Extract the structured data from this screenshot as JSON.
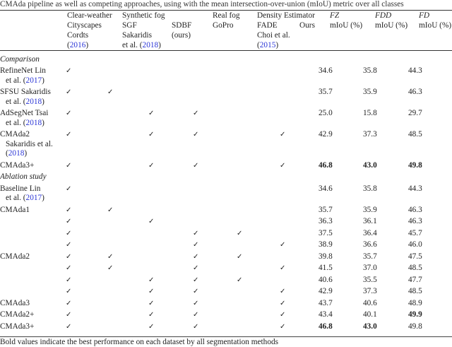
{
  "caption": "CMAda pipeline as well as competing approaches, using with the mean intersection-over-union (mIoU) metric over all classes",
  "link_color": "#2a35d6",
  "header": [
    {
      "lines": [
        [
          {
            "t": "Clear-weather"
          }
        ],
        [
          {
            "t": "Cityscapes"
          }
        ],
        [
          {
            "t": "Cordts"
          }
        ],
        [
          {
            "t": "("
          },
          {
            "t": "2016",
            "link": true
          },
          {
            "t": ")"
          }
        ]
      ]
    },
    {
      "lines": [
        [
          {
            "t": "Synthetic fog"
          }
        ],
        [
          {
            "t": "SGF"
          }
        ],
        [
          {
            "t": "Sakaridis"
          }
        ],
        [
          {
            "t": "et al. ("
          },
          {
            "t": "2018",
            "link": true
          },
          {
            "t": ")"
          }
        ]
      ]
    },
    {
      "lines": [
        [
          {
            "t": ""
          }
        ],
        [
          {
            "t": "SDBF"
          }
        ],
        [
          {
            "t": "(ours)"
          }
        ]
      ]
    },
    {
      "lines": [
        [
          {
            "t": "Real fog"
          }
        ],
        [
          {
            "t": "GoPro"
          }
        ]
      ]
    },
    {
      "lines": [
        [
          {
            "t": "Density Estimator"
          }
        ],
        [
          {
            "t": "FADE"
          }
        ],
        [
          {
            "t": "Choi et al."
          }
        ],
        [
          {
            "t": "("
          },
          {
            "t": "2015",
            "link": true
          },
          {
            "t": ")"
          }
        ]
      ]
    },
    {
      "lines": [
        [
          {
            "t": ""
          }
        ],
        [
          {
            "t": "Ours"
          }
        ]
      ]
    },
    {
      "lines": [
        [
          {
            "t": "FZ",
            "i": true
          }
        ],
        [
          {
            "t": "mIoU (%)"
          }
        ]
      ]
    },
    {
      "lines": [
        [
          {
            "t": "FDD",
            "i": true
          }
        ],
        [
          {
            "t": "mIoU (%)"
          }
        ]
      ]
    },
    {
      "lines": [
        [
          {
            "t": "FD",
            "i": true
          }
        ],
        [
          {
            "t": "mIoU (%)"
          }
        ]
      ]
    }
  ],
  "check_symbol": "✓",
  "rows": [
    {
      "section": "Comparison"
    },
    {
      "name": [
        [
          {
            "t": "RefineNet Lin"
          }
        ],
        [
          {
            "t": "et al. ("
          },
          {
            "t": "2017",
            "link": true
          },
          {
            "t": ")"
          }
        ]
      ],
      "checks": [
        1,
        0,
        0,
        0,
        0,
        0
      ],
      "values": [
        "34.6",
        "35.8",
        "44.3"
      ],
      "bold": [
        0,
        0,
        0
      ]
    },
    {
      "name": [
        [
          {
            "t": "SFSU Sakaridis"
          }
        ],
        [
          {
            "t": "et al. ("
          },
          {
            "t": "2018",
            "link": true
          },
          {
            "t": ")"
          }
        ]
      ],
      "checks": [
        1,
        1,
        0,
        0,
        0,
        0
      ],
      "values": [
        "35.7",
        "35.9",
        "46.3"
      ],
      "bold": [
        0,
        0,
        0
      ]
    },
    {
      "name": [
        [
          {
            "t": "AdSegNet Tsai"
          }
        ],
        [
          {
            "t": "et al. ("
          },
          {
            "t": "2018",
            "link": true
          },
          {
            "t": ")"
          }
        ]
      ],
      "checks": [
        1,
        0,
        1,
        1,
        0,
        0
      ],
      "values": [
        "25.0",
        "15.8",
        "29.7"
      ],
      "bold": [
        0,
        0,
        0
      ]
    },
    {
      "name": [
        [
          {
            "t": "CMAda2"
          }
        ],
        [
          {
            "t": "Sakaridis et al."
          }
        ],
        [
          {
            "t": "("
          },
          {
            "t": "2018",
            "link": true
          },
          {
            "t": ")"
          }
        ]
      ],
      "checks": [
        1,
        0,
        1,
        1,
        0,
        1
      ],
      "values": [
        "42.9",
        "37.3",
        "48.5"
      ],
      "bold": [
        0,
        0,
        0
      ]
    },
    {
      "name": [
        [
          {
            "t": "CMAda3+"
          }
        ]
      ],
      "checks": [
        1,
        0,
        1,
        1,
        0,
        1
      ],
      "values": [
        "46.8",
        "43.0",
        "49.8"
      ],
      "bold": [
        1,
        1,
        1
      ]
    },
    {
      "section": "Ablation study"
    },
    {
      "name": [
        [
          {
            "t": "Baseline Lin"
          }
        ],
        [
          {
            "t": "et al. ("
          },
          {
            "t": "2017",
            "link": true
          },
          {
            "t": ")"
          }
        ]
      ],
      "checks": [
        1,
        0,
        0,
        0,
        0,
        0
      ],
      "values": [
        "34.6",
        "35.8",
        "44.3"
      ],
      "bold": [
        0,
        0,
        0
      ]
    },
    {
      "name": [
        [
          {
            "t": "CMAda1"
          }
        ]
      ],
      "checks": [
        1,
        1,
        0,
        0,
        0,
        0
      ],
      "values": [
        "35.7",
        "35.9",
        "46.3"
      ],
      "bold": [
        0,
        0,
        0
      ]
    },
    {
      "name": [],
      "checks": [
        1,
        0,
        1,
        0,
        0,
        0
      ],
      "values": [
        "36.3",
        "36.1",
        "46.3"
      ],
      "bold": [
        0,
        0,
        0
      ]
    },
    {
      "name": [],
      "checks": [
        1,
        0,
        0,
        1,
        1,
        0
      ],
      "values": [
        "37.5",
        "36.4",
        "45.7"
      ],
      "bold": [
        0,
        0,
        0
      ]
    },
    {
      "name": [],
      "checks": [
        1,
        0,
        0,
        1,
        0,
        1
      ],
      "values": [
        "38.9",
        "36.6",
        "46.0"
      ],
      "bold": [
        0,
        0,
        0
      ]
    },
    {
      "name": [
        [
          {
            "t": "CMAda2"
          }
        ]
      ],
      "checks": [
        1,
        1,
        0,
        1,
        1,
        0
      ],
      "values": [
        "39.8",
        "35.7",
        "47.5"
      ],
      "bold": [
        0,
        0,
        0
      ]
    },
    {
      "name": [],
      "checks": [
        1,
        1,
        0,
        1,
        0,
        1
      ],
      "values": [
        "41.5",
        "37.0",
        "48.5"
      ],
      "bold": [
        0,
        0,
        0
      ]
    },
    {
      "name": [],
      "checks": [
        1,
        0,
        1,
        1,
        1,
        0
      ],
      "values": [
        "40.6",
        "35.5",
        "47.7"
      ],
      "bold": [
        0,
        0,
        0
      ]
    },
    {
      "name": [],
      "checks": [
        1,
        0,
        1,
        1,
        0,
        1
      ],
      "values": [
        "42.9",
        "37.3",
        "48.5"
      ],
      "bold": [
        0,
        0,
        0
      ]
    },
    {
      "name": [
        [
          {
            "t": "CMAda3"
          }
        ]
      ],
      "checks": [
        1,
        0,
        1,
        1,
        0,
        1
      ],
      "values": [
        "43.7",
        "40.6",
        "48.9"
      ],
      "bold": [
        0,
        0,
        0
      ]
    },
    {
      "name": [
        [
          {
            "t": "CMAda2+"
          }
        ]
      ],
      "checks": [
        1,
        0,
        1,
        1,
        0,
        1
      ],
      "values": [
        "43.4",
        "40.1",
        "49.9"
      ],
      "bold": [
        0,
        0,
        1
      ]
    },
    {
      "name": [
        [
          {
            "t": "CMAda3+"
          }
        ]
      ],
      "checks": [
        1,
        0,
        1,
        1,
        0,
        1
      ],
      "values": [
        "46.8",
        "43.0",
        "49.8"
      ],
      "bold": [
        1,
        1,
        0
      ]
    }
  ],
  "footnote": "Bold values indicate the best performance on each dataset by all segmentation methods"
}
